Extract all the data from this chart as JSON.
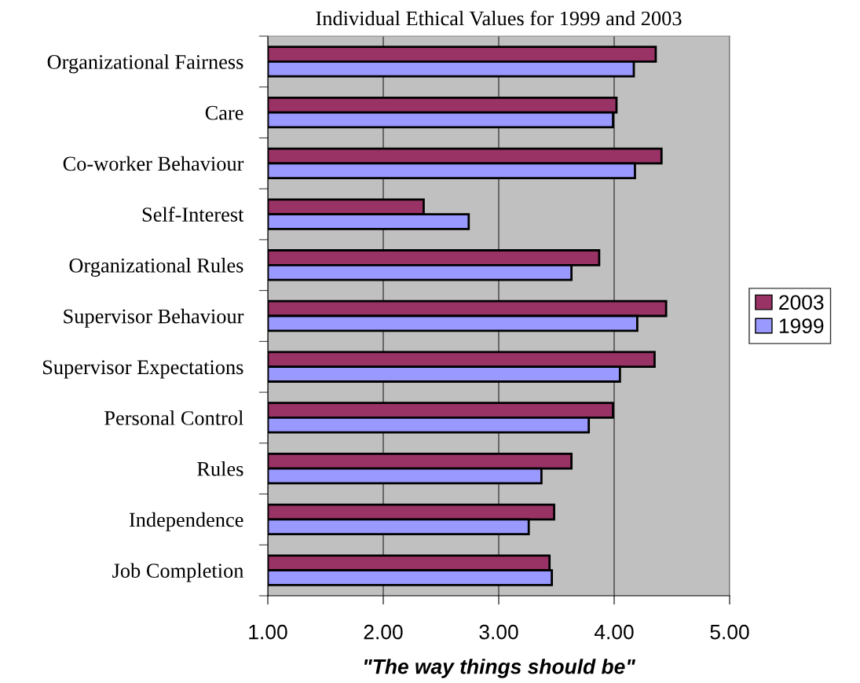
{
  "chart_data": {
    "type": "bar",
    "orientation": "horizontal",
    "title": "Individual Ethical Values for 1999 and 2003",
    "xlabel": "\"The way things should be\"",
    "categories": [
      "Organizational Fairness",
      "Care",
      "Co-worker Behaviour",
      "Self-Interest",
      "Organizational Rules",
      "Supervisor Behaviour",
      "Supervisor Expectations",
      "Personal Control",
      "Rules",
      "Independence",
      "Job Completion"
    ],
    "series": [
      {
        "name": "2003",
        "color": "#993366",
        "values": [
          4.36,
          4.02,
          4.41,
          2.35,
          3.87,
          4.45,
          4.35,
          3.99,
          3.63,
          3.48,
          3.44
        ]
      },
      {
        "name": "1999",
        "color": "#9999ff",
        "values": [
          4.17,
          3.99,
          4.18,
          2.74,
          3.63,
          4.2,
          4.05,
          3.78,
          3.37,
          3.26,
          3.46
        ]
      }
    ],
    "xlim": [
      1,
      5
    ],
    "xticks": [
      {
        "value": 1,
        "label": "1.00"
      },
      {
        "value": 2,
        "label": "2.00"
      },
      {
        "value": 3,
        "label": "3.00"
      },
      {
        "value": 4,
        "label": "4.00"
      },
      {
        "value": 5,
        "label": "5.00"
      }
    ],
    "grid": "x",
    "legend": "right"
  }
}
